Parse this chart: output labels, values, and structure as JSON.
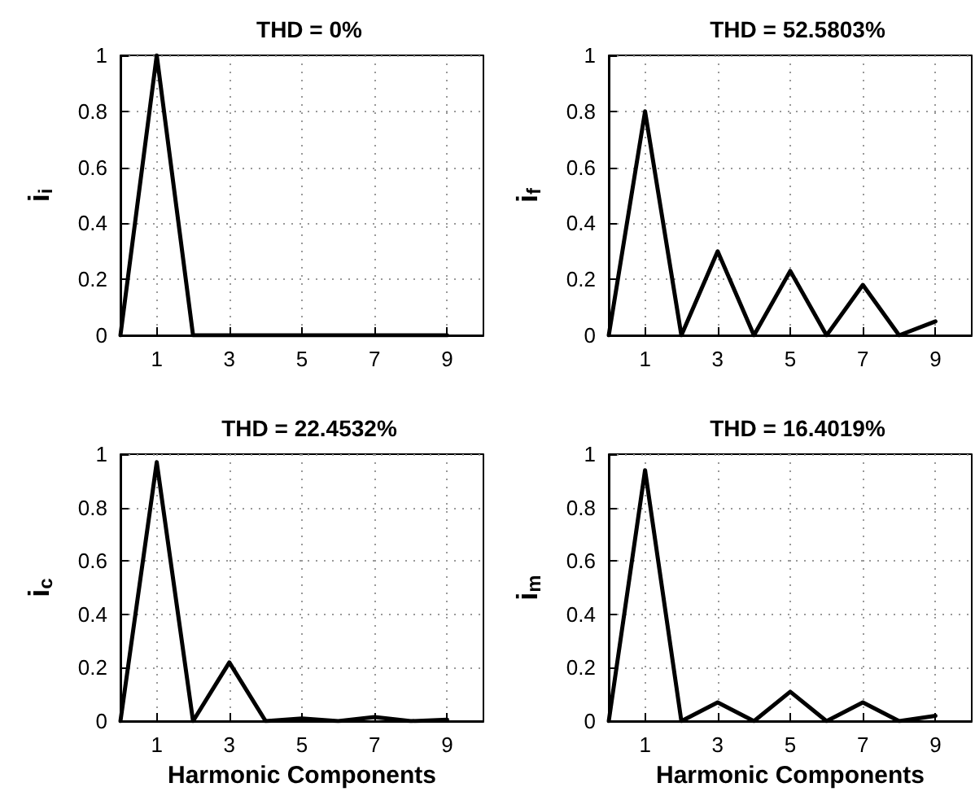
{
  "chart_data": [
    {
      "type": "line",
      "title": "THD = 0%",
      "ylabel": "i$_{i}$",
      "x": [
        0,
        1,
        2,
        3,
        4,
        5,
        6,
        7,
        8,
        9
      ],
      "series": [
        {
          "color": "#000000",
          "values": [
            0,
            1,
            0,
            0,
            0,
            0,
            0,
            0,
            0,
            0
          ]
        }
      ],
      "xlim": [
        0,
        10
      ],
      "xticks": [
        1,
        3,
        5,
        7,
        9
      ],
      "ylim": [
        0,
        1
      ],
      "yticks": [
        0,
        0.2,
        0.4,
        0.6,
        0.8,
        1
      ],
      "grid": true,
      "marker": "none",
      "line_style": "solid"
    },
    {
      "type": "line",
      "title": "THD = 52.5803%",
      "ylabel": "i$_{f}$",
      "x": [
        0,
        1,
        2,
        3,
        4,
        5,
        6,
        7,
        8,
        9
      ],
      "series": [
        {
          "color": "#000000",
          "values": [
            0,
            0.8,
            0,
            0.3,
            0,
            0.23,
            0,
            0.18,
            0,
            0.05
          ]
        }
      ],
      "xlim": [
        0,
        10
      ],
      "xticks": [
        1,
        3,
        5,
        7,
        9
      ],
      "ylim": [
        0,
        1
      ],
      "yticks": [
        0,
        0.2,
        0.4,
        0.6,
        0.8,
        1
      ],
      "grid": true,
      "marker": "none",
      "line_style": "solid"
    },
    {
      "type": "line",
      "title": "THD = 22.4532%",
      "xlabel": "Harmonic Components",
      "ylabel": "i$_{c}$",
      "x": [
        0,
        1,
        2,
        3,
        4,
        5,
        6,
        7,
        8,
        9
      ],
      "series": [
        {
          "color": "#000000",
          "values": [
            0,
            0.97,
            0,
            0.22,
            0,
            0.01,
            0,
            0.015,
            0,
            0.005
          ]
        }
      ],
      "xlim": [
        0,
        10
      ],
      "xticks": [
        1,
        3,
        5,
        7,
        9
      ],
      "ylim": [
        0,
        1
      ],
      "yticks": [
        0,
        0.2,
        0.4,
        0.6,
        0.8,
        1
      ],
      "grid": true,
      "marker": "none",
      "line_style": "solid"
    },
    {
      "type": "line",
      "title": "THD = 16.4019%",
      "xlabel": "Harmonic Components",
      "ylabel": "i$_{m}$",
      "x": [
        0,
        1,
        2,
        3,
        4,
        5,
        6,
        7,
        8,
        9
      ],
      "series": [
        {
          "color": "#000000",
          "values": [
            0,
            0.94,
            0,
            0.07,
            0,
            0.11,
            0,
            0.07,
            0,
            0.02
          ]
        }
      ],
      "xlim": [
        0,
        10
      ],
      "xticks": [
        1,
        3,
        5,
        7,
        9
      ],
      "ylim": [
        0,
        1
      ],
      "yticks": [
        0,
        0.2,
        0.4,
        0.6,
        0.8,
        1
      ],
      "grid": true,
      "marker": "none",
      "line_style": "solid"
    }
  ]
}
